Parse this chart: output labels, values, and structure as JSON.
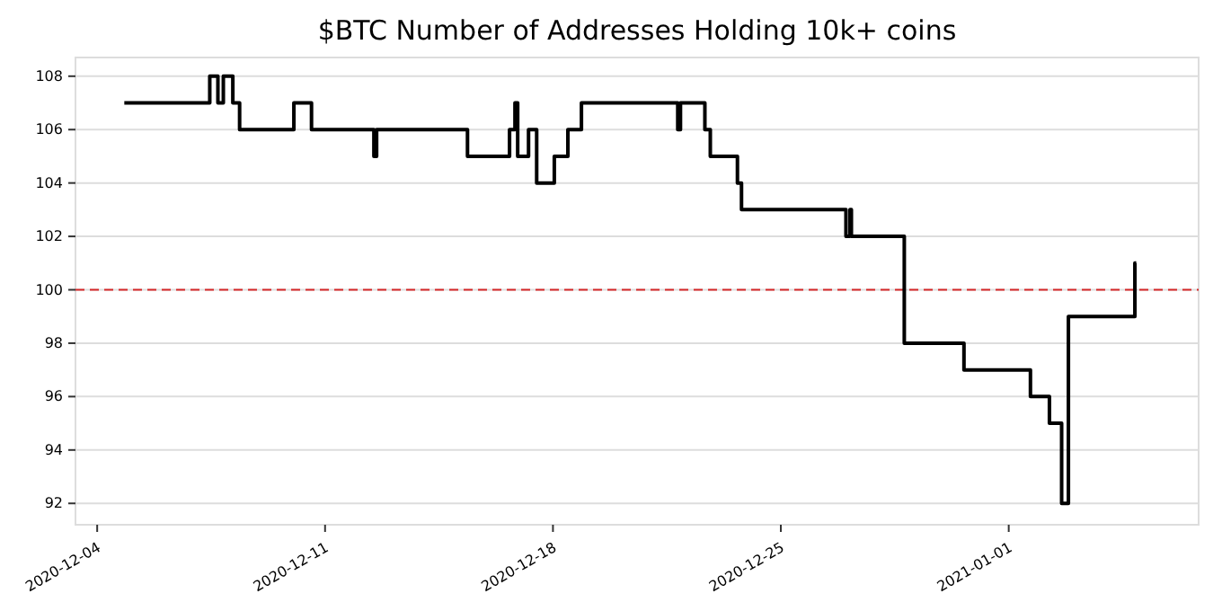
{
  "chart_data": {
    "type": "step",
    "title": "$BTC Number of Addresses Holding 10k+ coins",
    "x": [
      "2020-12-04T20:00",
      "2020-12-07T11:00",
      "2020-12-07T17:00",
      "2020-12-07T21:00",
      "2020-12-08T04:00",
      "2020-12-08T09:00",
      "2020-12-10T01:00",
      "2020-12-10T14:00",
      "2020-12-12T12:00",
      "2020-12-12T14:00",
      "2020-12-15T09:00",
      "2020-12-16T16:00",
      "2020-12-16T20:00",
      "2020-12-16T22:00",
      "2020-12-17T06:00",
      "2020-12-17T12:00",
      "2020-12-18T01:00",
      "2020-12-18T11:00",
      "2020-12-18T21:00",
      "2020-12-21T20:00",
      "2020-12-21T22:00",
      "2020-12-22T16:00",
      "2020-12-22T20:00",
      "2020-12-23T16:00",
      "2020-12-23T19:00",
      "2020-12-27T00:00",
      "2020-12-27T03:00",
      "2020-12-27T04:00",
      "2020-12-28T19:00",
      "2020-12-30T15:00",
      "2021-01-01T16:00",
      "2021-01-02T06:00",
      "2021-01-02T15:00",
      "2021-01-02T20:00",
      "2021-01-04T21:00",
      "2021-01-04T22:00"
    ],
    "series": [
      {
        "color": "#000000",
        "values": [
          107,
          108,
          107,
          108,
          107,
          106,
          107,
          106,
          105,
          106,
          105,
          106,
          107,
          105,
          106,
          104,
          105,
          106,
          107,
          106,
          107,
          106,
          105,
          104,
          103,
          102,
          103,
          102,
          98,
          97,
          96,
          95,
          92,
          99,
          101,
          101
        ]
      }
    ],
    "xlim": [
      "2020-12-03T08:00",
      "2021-01-06T20:00"
    ],
    "ylim": [
      91.2,
      108.7
    ],
    "xticks": [
      "2020-12-04",
      "2020-12-11",
      "2020-12-18",
      "2020-12-25",
      "2021-01-01"
    ],
    "yticks": [
      92,
      94,
      96,
      98,
      100,
      102,
      104,
      106,
      108
    ],
    "grid": "y",
    "ref_lines": [
      {
        "axis": "y",
        "value": 100,
        "color": "#d62728",
        "line_style": "dashed"
      }
    ]
  }
}
